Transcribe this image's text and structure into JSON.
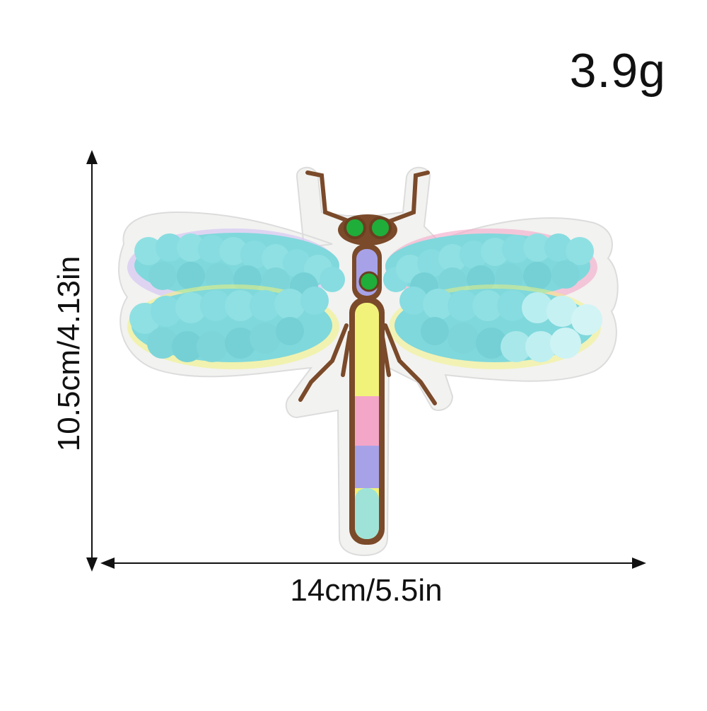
{
  "product": {
    "name": "sequin dragonfly patch",
    "weight_label": "3.9g",
    "width_label": "14cm/5.5in",
    "height_label": "10.5cm/4.13in"
  },
  "colors": {
    "background": "#ffffff",
    "felt_backing": "#f2f2f0",
    "sequin_wing": "#7fd8dc",
    "sequin_wing_light": "#b9eef0",
    "embroidery_outline": "#7a4a2a",
    "eye": "#1fae3a",
    "iridescent_body": [
      "#f1f27a",
      "#f4a6c8",
      "#a7a2e8",
      "#9fe3d8"
    ],
    "dimension_lines": "#111111"
  }
}
